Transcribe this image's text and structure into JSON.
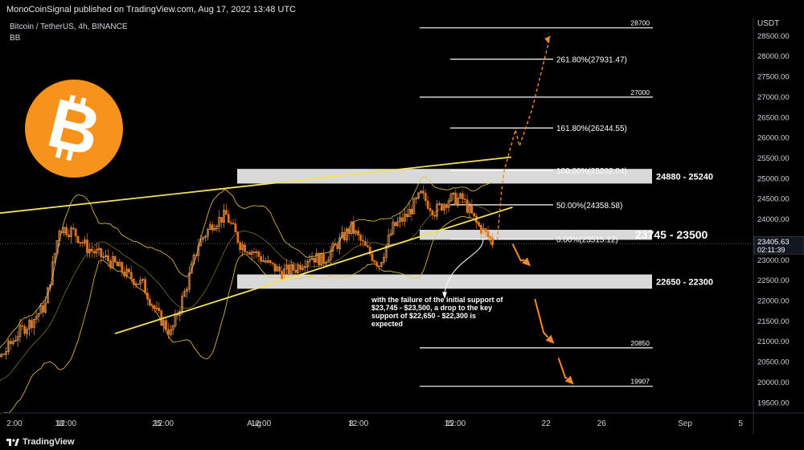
{
  "header": {
    "publisher_line": "MonoCoinSignal published on TradingView.com, Aug 17, 2022 13:48 UTC"
  },
  "symbol": {
    "title": "Bitcoin / TetherUS, 4h, BINANCE",
    "indicator": "BB"
  },
  "axis": {
    "currency": "USDT",
    "y_ticks": [
      19500,
      20000,
      20500,
      21000,
      21500,
      22000,
      22500,
      23000,
      23500,
      24000,
      24500,
      25000,
      25500,
      26000,
      26500,
      27000,
      27500,
      28000,
      28500
    ],
    "y_range": [
      19250,
      28950
    ],
    "x_ticks": [
      {
        "label": "2:00",
        "day": 11.333
      },
      {
        "label": "18",
        "day": 18
      },
      {
        "label": "12:00",
        "day": 18.5
      },
      {
        "label": "25",
        "day": 25
      },
      {
        "label": "12:00",
        "day": 25.5
      },
      {
        "label": "Aug",
        "day": 32
      },
      {
        "label": "12:00",
        "day": 32.5
      },
      {
        "label": "8",
        "day": 39
      },
      {
        "label": "12:00",
        "day": 39.5
      },
      {
        "label": "15",
        "day": 46
      },
      {
        "label": "12:00",
        "day": 46.5
      },
      {
        "label": "22",
        "day": 53
      },
      {
        "label": "26",
        "day": 57
      },
      {
        "label": "Sep",
        "day": 63
      },
      {
        "label": "5",
        "day": 67
      }
    ],
    "price_tag": "23405.63",
    "countdown": "02:11:39"
  },
  "zones": [
    {
      "label": "24880 - 25240",
      "low": 24880,
      "high": 25240,
      "start": 28,
      "end": 50
    },
    {
      "label": "23745 - 23500",
      "low": 23500,
      "high": 23745,
      "start": 45,
      "end": 50
    },
    {
      "label": "22650 - 22300",
      "low": 22300,
      "high": 22650,
      "start": 28,
      "end": 50
    }
  ],
  "levels": [
    {
      "label": "28700",
      "price": 28700,
      "start": 45,
      "end": 53
    },
    {
      "label": "261.80%(27931.47)",
      "price": 27931.47,
      "start": 46,
      "end": 50
    },
    {
      "label": "27000",
      "price": 27000,
      "start": 45,
      "end": 53
    },
    {
      "label": "161.80%(26244.55)",
      "price": 26244.55,
      "start": 46,
      "end": 50
    },
    {
      "label": "100.00%(25202.04)",
      "price": 25202.04,
      "start": 46,
      "end": 50
    },
    {
      "label": "50.00%(24358.58)",
      "price": 24358.58,
      "start": 46,
      "end": 50
    },
    {
      "label": "0.00%(23515.12)",
      "price": 23515.12,
      "start": 46,
      "end": 50
    },
    {
      "label": "20850",
      "price": 20850,
      "start": 45,
      "end": 53
    },
    {
      "label": "19907",
      "price": 19907,
      "start": 45,
      "end": 53
    }
  ],
  "trendlines": [
    {
      "from": [
        11.7,
        24080
      ],
      "to": [
        50.5,
        25530
      ]
    },
    {
      "from": [
        22,
        21200
      ],
      "to": [
        50.6,
        24300
      ]
    }
  ],
  "annotation": "with the failure of the initial support of $23,745 - $23,500, a drop to the key support of $22,650 - $22,300 is expected",
  "projected_up_path": [
    [
      49.5,
      23500
    ],
    [
      49.8,
      24700
    ],
    [
      50.0,
      25200
    ],
    [
      50.8,
      26200
    ],
    [
      51.1,
      25800
    ],
    [
      52,
      26700
    ],
    [
      53.3,
      28500
    ]
  ],
  "projected_down_arrows": [
    {
      "from": [
        50.6,
        23400
      ],
      "to": [
        51.9,
        22850
      ]
    },
    {
      "from": [
        52.2,
        22050
      ],
      "to": [
        53.6,
        20950
      ]
    },
    {
      "from": [
        53.9,
        20600
      ],
      "to": [
        55.0,
        19950
      ]
    }
  ],
  "chart_data": {
    "type": "line",
    "title": "Bitcoin / TetherUS, 4h, BINANCE",
    "description_series": "BTCUSDT 4h close (approx.)",
    "x_unit": "day (July 2022 day-of-month; 32 = Aug 1)",
    "x": [
      11,
      12,
      13,
      14,
      15,
      16,
      17,
      18,
      19,
      20,
      21,
      22,
      23,
      24,
      25,
      26,
      27,
      28,
      29,
      30,
      31,
      32,
      33,
      34,
      35,
      36,
      37,
      38,
      39,
      40,
      41,
      42,
      43,
      44,
      45,
      46,
      47,
      48,
      49.3
    ],
    "series": [
      {
        "name": "",
        "values": [
          19600,
          19800,
          20400,
          20700,
          21200,
          21500,
          21900,
          23800,
          23700,
          23300,
          23100,
          22900,
          22600,
          22400,
          21700,
          21200,
          22200,
          23400,
          23900,
          24100,
          23400,
          23200,
          22900,
          22700,
          22800,
          23100,
          23000,
          23400,
          23800,
          23300,
          22900,
          23800,
          24100,
          24600,
          24200,
          24500,
          24500,
          23900,
          23400
        ]
      }
    ],
    "ylabel": "USDT",
    "ylim": [
      19250,
      28950
    ],
    "grid": false,
    "legend": "none"
  }
}
